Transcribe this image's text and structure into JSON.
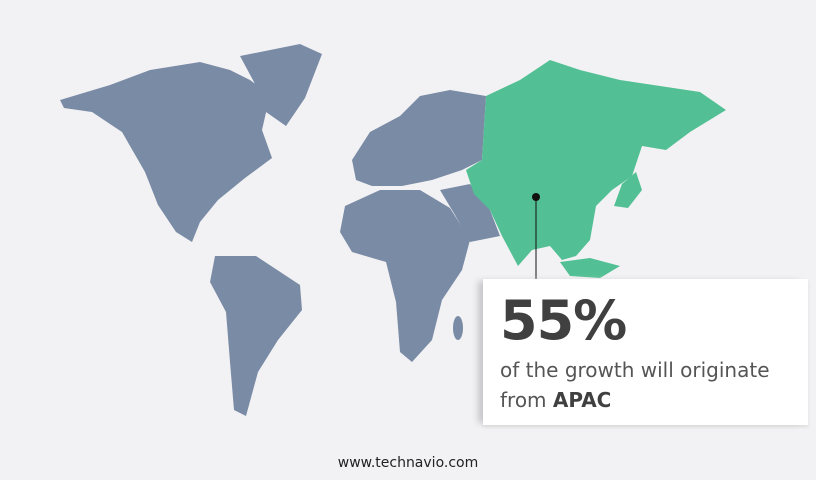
{
  "colors": {
    "background": "#f2f2f4",
    "map_land": "#7a8ba6",
    "highlight_region": "#52c094",
    "text": "#404040"
  },
  "highlight_region": "APAC",
  "callout": {
    "value": "55%",
    "text": "of the growth will originate from",
    "region": "APAC"
  },
  "footer": {
    "website": "www.technavio.com"
  }
}
